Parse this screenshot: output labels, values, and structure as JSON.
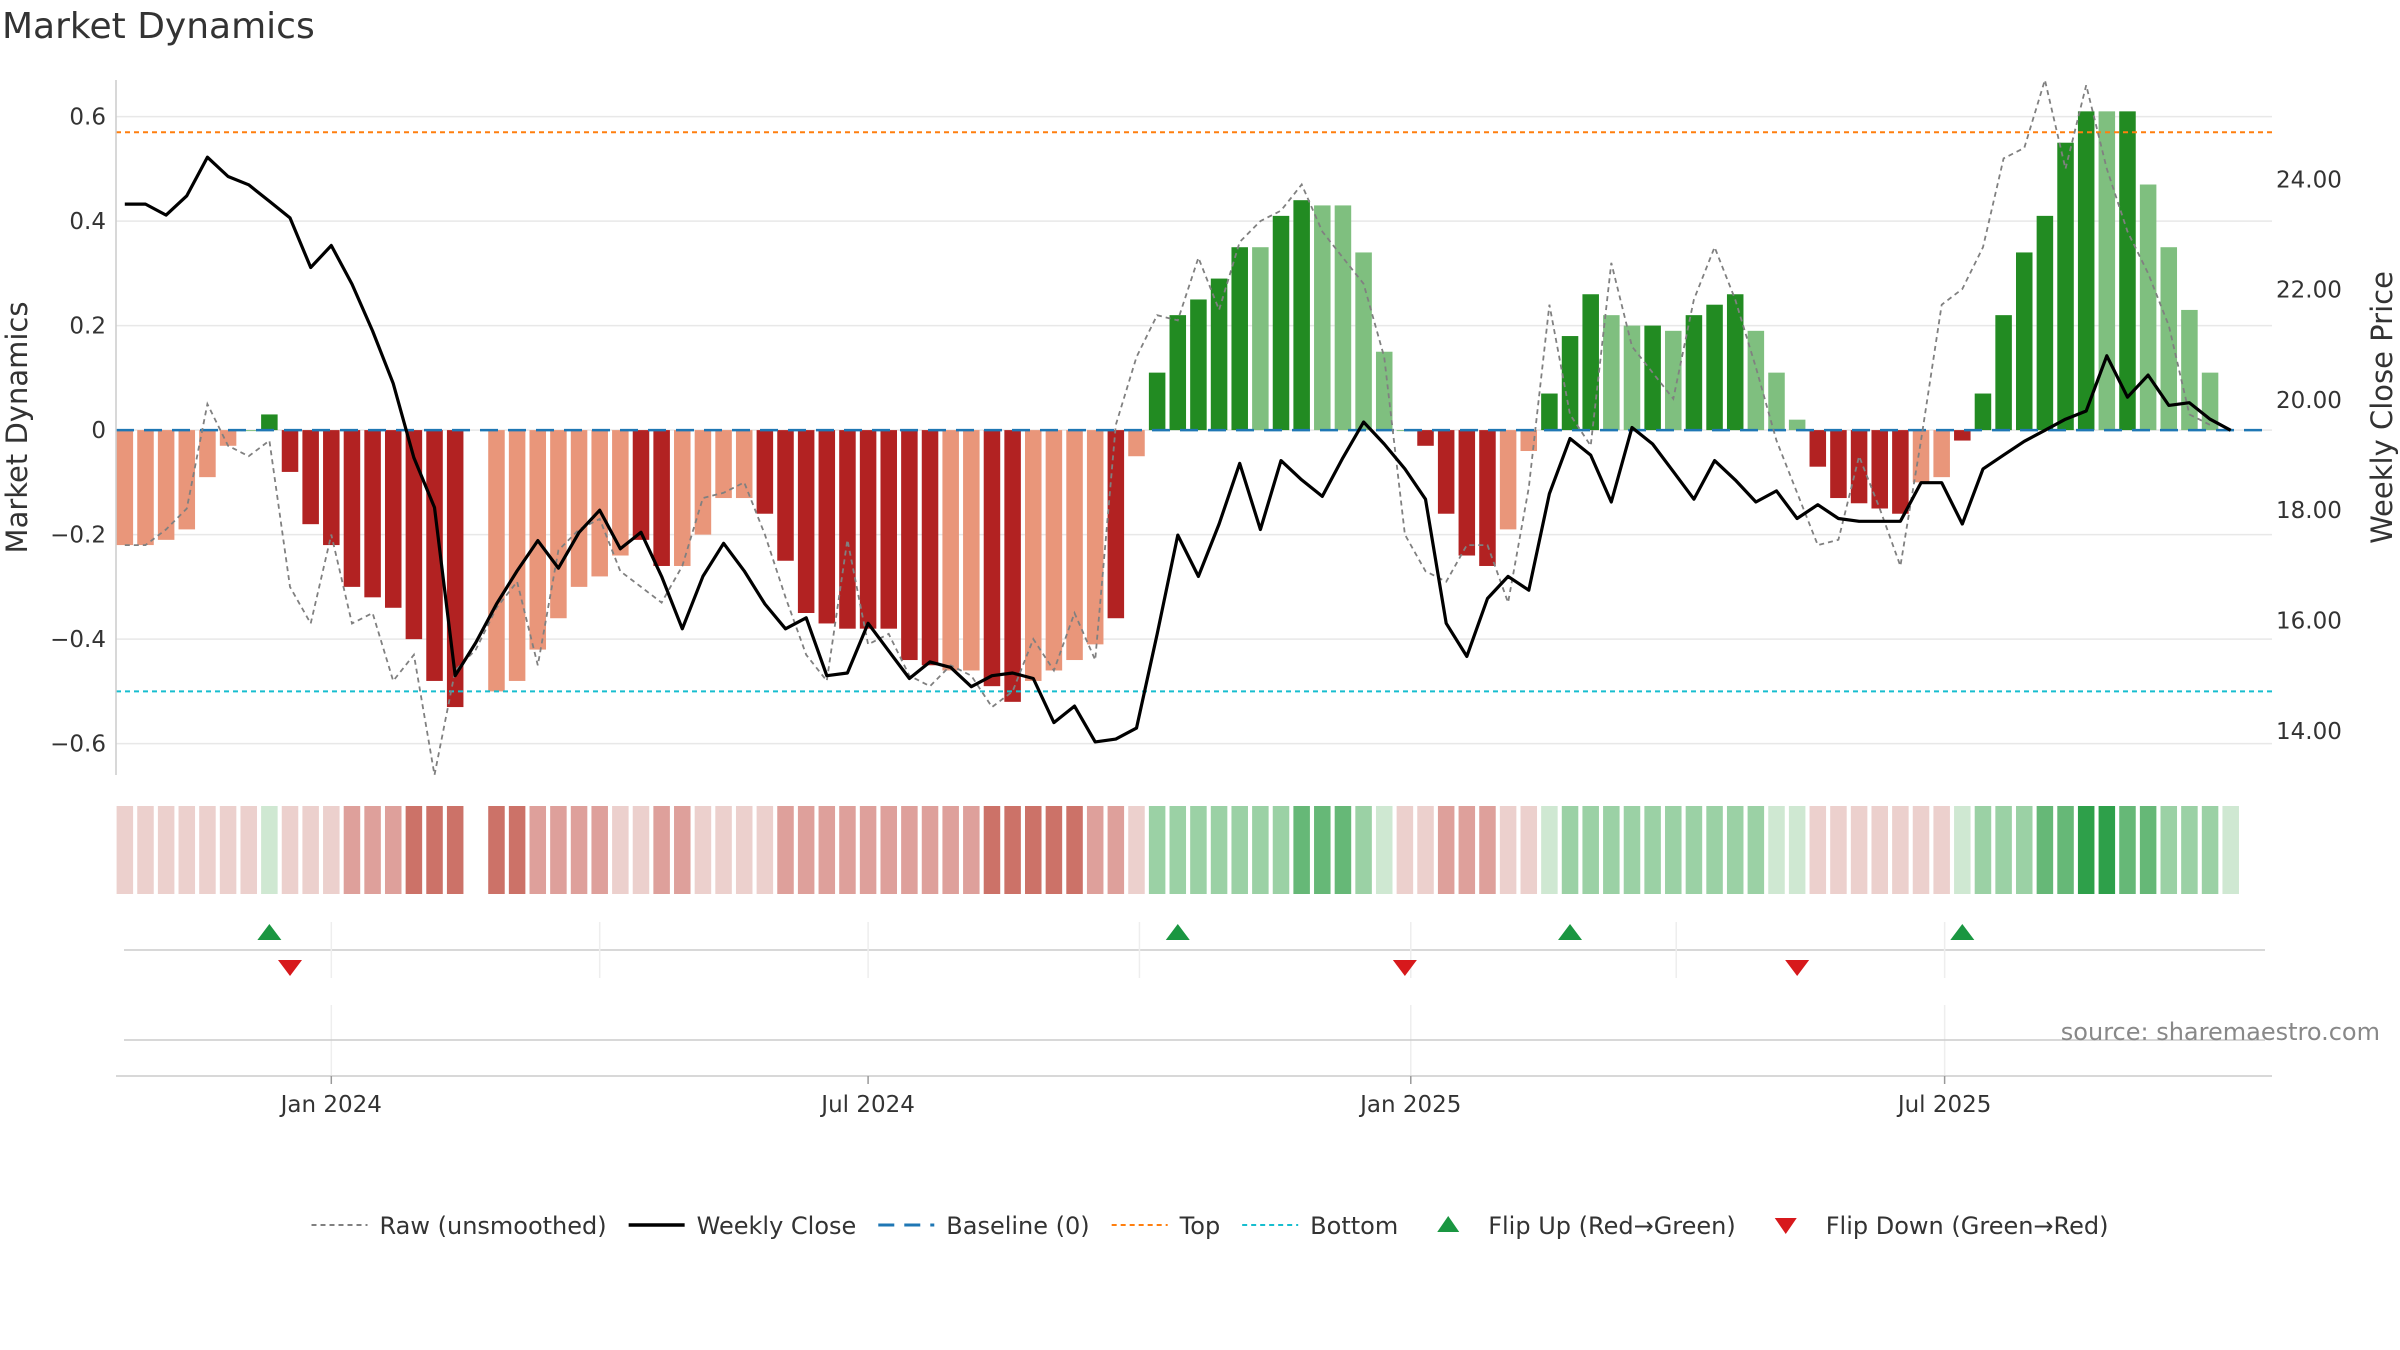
{
  "title": "Market Dynamics",
  "source": "source: sharemaestro.com",
  "colors": {
    "strong_red": "#b22222",
    "weak_red": "#e9967a",
    "strong_green": "#228b22",
    "weak_green": "#7fbf7f",
    "raw_line": "#808080",
    "close_line": "#000000",
    "baseline": "#1f77b4",
    "top": "#ff7f0e",
    "bottom": "#17becf",
    "flip_up": "#1a9641",
    "flip_down": "#d7191c"
  },
  "chart_data": {
    "type": "bar",
    "title": "Market Dynamics",
    "ylabel": "Market Dynamics",
    "y2label": "Weekly Close Price",
    "ylim": [
      -0.66,
      0.67
    ],
    "y2lim": [
      13.2,
      25.8
    ],
    "y_ticks": [
      {
        "value": 0.6,
        "label": "0.6"
      },
      {
        "value": 0.4,
        "label": "0.4"
      },
      {
        "value": 0.2,
        "label": "0.2"
      },
      {
        "value": 0,
        "label": "0"
      },
      {
        "value": -0.2,
        "label": "−0.2"
      },
      {
        "value": -0.4,
        "label": "−0.4"
      },
      {
        "value": -0.6,
        "label": "−0.6"
      }
    ],
    "y2_ticks": [
      {
        "value": 24,
        "label": "24.00"
      },
      {
        "value": 22,
        "label": "22.00"
      },
      {
        "value": 20,
        "label": "20.00"
      },
      {
        "value": 18,
        "label": "18.00"
      },
      {
        "value": 16,
        "label": "16.00"
      },
      {
        "value": 14,
        "label": "14.00"
      }
    ],
    "x_ticks": [
      {
        "date": "2024-01-01",
        "label": "Jan 2024"
      },
      {
        "date": "2024-07-01",
        "label": "Jul 2024"
      },
      {
        "date": "2025-01-01",
        "label": "Jan 2025"
      },
      {
        "date": "2025-07-01",
        "label": "Jul 2025"
      }
    ],
    "x_grid_dates": [
      "2024-01-01",
      "2024-04-01",
      "2024-07-01",
      "2024-10-01",
      "2025-01-01",
      "2025-04-01",
      "2025-07-01"
    ],
    "xlim": [
      "2023-10-20",
      "2025-10-20"
    ],
    "top_level": 0.57,
    "bottom_level": -0.5,
    "baseline": 0,
    "weeks": [
      "2023-10-23",
      "2023-10-30",
      "2023-11-06",
      "2023-11-13",
      "2023-11-20",
      "2023-11-27",
      "2023-12-04",
      "2023-12-11",
      "2023-12-18",
      "2023-12-25",
      "2024-01-01",
      "2024-01-08",
      "2024-01-15",
      "2024-01-22",
      "2024-01-29",
      "2024-02-05",
      "2024-02-12",
      "2024-02-19",
      "2024-02-26",
      "2024-03-04",
      "2024-03-11",
      "2024-03-18",
      "2024-03-25",
      "2024-04-01",
      "2024-04-08",
      "2024-04-15",
      "2024-04-22",
      "2024-04-29",
      "2024-05-06",
      "2024-05-13",
      "2024-05-20",
      "2024-05-27",
      "2024-06-03",
      "2024-06-10",
      "2024-06-17",
      "2024-06-24",
      "2024-07-01",
      "2024-07-08",
      "2024-07-15",
      "2024-07-22",
      "2024-07-29",
      "2024-08-05",
      "2024-08-12",
      "2024-08-19",
      "2024-08-26",
      "2024-09-02",
      "2024-09-09",
      "2024-09-16",
      "2024-09-23",
      "2024-09-30",
      "2024-10-07",
      "2024-10-14",
      "2024-10-21",
      "2024-10-28",
      "2024-11-04",
      "2024-11-11",
      "2024-11-18",
      "2024-11-25",
      "2024-12-02",
      "2024-12-09",
      "2024-12-16",
      "2024-12-23",
      "2024-12-30",
      "2025-01-06",
      "2025-01-13",
      "2025-01-20",
      "2025-01-27",
      "2025-02-03",
      "2025-02-10",
      "2025-02-17",
      "2025-02-24",
      "2025-03-03",
      "2025-03-10",
      "2025-03-17",
      "2025-03-24",
      "2025-03-31",
      "2025-04-07",
      "2025-04-14",
      "2025-04-21",
      "2025-04-28",
      "2025-05-05",
      "2025-05-12",
      "2025-05-19",
      "2025-05-26",
      "2025-06-02",
      "2025-06-09",
      "2025-06-16",
      "2025-06-23",
      "2025-06-30",
      "2025-07-07",
      "2025-07-14",
      "2025-07-21",
      "2025-07-28",
      "2025-08-04",
      "2025-08-11",
      "2025-08-18",
      "2025-08-25",
      "2025-09-01",
      "2025-09-08",
      "2025-09-15",
      "2025-09-22",
      "2025-09-29",
      "2025-10-06"
    ],
    "dynamics": [
      -0.22,
      -0.22,
      -0.21,
      -0.19,
      -0.09,
      -0.03,
      0,
      0.03,
      -0.08,
      -0.18,
      -0.22,
      -0.3,
      -0.32,
      -0.34,
      -0.4,
      -0.48,
      -0.53,
      null,
      -0.5,
      -0.48,
      -0.42,
      -0.36,
      -0.3,
      -0.28,
      -0.24,
      -0.21,
      -0.26,
      -0.26,
      -0.2,
      -0.13,
      -0.13,
      -0.16,
      -0.25,
      -0.35,
      -0.37,
      -0.38,
      -0.38,
      -0.38,
      -0.44,
      -0.45,
      -0.46,
      -0.46,
      -0.49,
      -0.52,
      -0.48,
      -0.46,
      -0.44,
      -0.41,
      -0.36,
      -0.05,
      0.11,
      0.22,
      0.25,
      0.29,
      0.35,
      0.35,
      0.41,
      0.44,
      0.43,
      0.43,
      0.34,
      0.15,
      0,
      -0.03,
      -0.16,
      -0.24,
      -0.26,
      -0.19,
      -0.04,
      0.07,
      0.18,
      0.26,
      0.22,
      0.2,
      0.2,
      0.19,
      0.22,
      0.24,
      0.26,
      0.19,
      0.11,
      0.02,
      -0.07,
      -0.13,
      -0.14,
      -0.15,
      -0.16,
      -0.1,
      -0.09,
      -0.02,
      0.07,
      0.22,
      0.34,
      0.41,
      0.55,
      0.61,
      0.61,
      0.61,
      0.47,
      0.35,
      0.23,
      0.11
    ],
    "strength": [
      "weak",
      "weak",
      "weak",
      "weak",
      "weak",
      "weak",
      "weak",
      "strong",
      "strong",
      "strong",
      "strong",
      "strong",
      "strong",
      "strong",
      "strong",
      "strong",
      "strong",
      "none",
      "weak",
      "weak",
      "weak",
      "weak",
      "weak",
      "weak",
      "weak",
      "strong",
      "strong",
      "weak",
      "weak",
      "weak",
      "weak",
      "strong",
      "strong",
      "strong",
      "strong",
      "strong",
      "strong",
      "strong",
      "strong",
      "strong",
      "weak",
      "weak",
      "strong",
      "strong",
      "weak",
      "weak",
      "weak",
      "weak",
      "strong",
      "weak",
      "strong",
      "strong",
      "strong",
      "strong",
      "strong",
      "weak",
      "strong",
      "strong",
      "weak",
      "weak",
      "weak",
      "weak",
      "weak",
      "strong",
      "strong",
      "strong",
      "strong",
      "weak",
      "weak",
      "strong",
      "strong",
      "strong",
      "weak",
      "weak",
      "strong",
      "weak",
      "strong",
      "strong",
      "strong",
      "weak",
      "weak",
      "weak",
      "strong",
      "strong",
      "strong",
      "strong",
      "strong",
      "weak",
      "weak",
      "strong",
      "strong",
      "strong",
      "strong",
      "strong",
      "strong",
      "strong",
      "weak",
      "strong",
      "weak",
      "weak",
      "weak",
      "weak",
      "weak"
    ],
    "raw": [
      -0.22,
      -0.22,
      -0.19,
      -0.15,
      0.05,
      -0.03,
      -0.05,
      -0.02,
      -0.3,
      -0.37,
      -0.2,
      -0.37,
      -0.35,
      -0.48,
      -0.43,
      -0.66,
      -0.46,
      -0.42,
      -0.34,
      -0.29,
      -0.45,
      -0.23,
      -0.19,
      -0.17,
      -0.27,
      -0.3,
      -0.33,
      -0.26,
      -0.13,
      -0.12,
      -0.1,
      -0.2,
      -0.32,
      -0.43,
      -0.48,
      -0.21,
      -0.41,
      -0.39,
      -0.47,
      -0.49,
      -0.45,
      -0.47,
      -0.53,
      -0.5,
      -0.4,
      -0.46,
      -0.35,
      -0.44,
      0.01,
      0.14,
      0.22,
      0.21,
      0.33,
      0.23,
      0.36,
      0.4,
      0.42,
      0.47,
      0.38,
      0.33,
      0.28,
      0.14,
      -0.2,
      -0.27,
      -0.29,
      -0.22,
      -0.22,
      -0.33,
      -0.11,
      0.24,
      0.03,
      -0.03,
      0.32,
      0.16,
      0.11,
      0.06,
      0.25,
      0.35,
      0.25,
      0.12,
      -0.02,
      -0.12,
      -0.22,
      -0.21,
      -0.05,
      -0.15,
      -0.26,
      -0.02,
      0.24,
      0.27,
      0.35,
      0.52,
      0.54,
      0.67,
      0.5,
      0.66,
      0.5,
      0.38,
      0.3,
      0.2,
      0.03,
      0.01
    ],
    "weekly_close": [
      23.55,
      23.55,
      23.35,
      23.7,
      24.4,
      24.05,
      23.9,
      23.6,
      23.3,
      22.4,
      22.8,
      22.1,
      21.25,
      20.3,
      18.95,
      18.05,
      15.0,
      15.6,
      16.3,
      16.9,
      17.45,
      16.95,
      17.6,
      18.0,
      17.3,
      17.6,
      16.8,
      15.85,
      16.8,
      17.4,
      16.9,
      16.3,
      15.85,
      16.05,
      15.0,
      15.05,
      15.95,
      15.45,
      14.95,
      15.25,
      15.15,
      14.8,
      15.0,
      15.05,
      14.95,
      14.15,
      14.45,
      13.8,
      13.85,
      14.05,
      15.75,
      17.55,
      16.8,
      17.75,
      18.85,
      17.65,
      18.9,
      18.55,
      18.25,
      18.95,
      19.6,
      19.2,
      18.75,
      18.2,
      15.95,
      15.35,
      16.4,
      16.8,
      16.55,
      18.3,
      19.3,
      19.0,
      18.15,
      19.5,
      19.2,
      18.7,
      18.2,
      18.9,
      18.55,
      18.15,
      18.35,
      17.85,
      18.1,
      17.85,
      17.8,
      17.8,
      17.8,
      18.5,
      18.5,
      17.75,
      18.75,
      19.0,
      19.25,
      19.45,
      19.65,
      19.8,
      20.8,
      20.05,
      20.45,
      19.9,
      19.95,
      19.65,
      19.45,
      19.05
    ],
    "regime": [
      "r1",
      "r1",
      "r1",
      "r1",
      "r1",
      "r1",
      "r1",
      "g1",
      "r1",
      "r1",
      "r1",
      "r2",
      "r2",
      "r2",
      "r3",
      "r3",
      "r3",
      "none",
      "r3",
      "r3",
      "r2",
      "r2",
      "r2",
      "r2",
      "r1",
      "r1",
      "r2",
      "r2",
      "r1",
      "r1",
      "r1",
      "r1",
      "r2",
      "r2",
      "r2",
      "r2",
      "r2",
      "r2",
      "r2",
      "r2",
      "r2",
      "r2",
      "r3",
      "r3",
      "r3",
      "r3",
      "r3",
      "r2",
      "r2",
      "r1",
      "g2",
      "g2",
      "g2",
      "g2",
      "g2",
      "g2",
      "g2",
      "g3",
      "g3",
      "g3",
      "g2",
      "g1",
      "r1",
      "r1",
      "r2",
      "r2",
      "r2",
      "r1",
      "r1",
      "g1",
      "g2",
      "g2",
      "g2",
      "g2",
      "g2",
      "g2",
      "g2",
      "g2",
      "g2",
      "g2",
      "g1",
      "g1",
      "r1",
      "r1",
      "r1",
      "r1",
      "r1",
      "r1",
      "r1",
      "g1",
      "g2",
      "g2",
      "g2",
      "g3",
      "g3",
      "g4",
      "g4",
      "g3",
      "g3",
      "g2",
      "g2",
      "g2",
      "g1"
    ],
    "flips_up": [
      "2023-12-11",
      "2024-10-14",
      "2025-02-24",
      "2025-07-07"
    ],
    "flips_down": [
      "2023-12-18",
      "2024-12-30",
      "2025-05-12"
    ],
    "legend": [
      {
        "key": "raw",
        "label": "Raw (unsmoothed)"
      },
      {
        "key": "close",
        "label": "Weekly Close"
      },
      {
        "key": "baseline",
        "label": "Baseline (0)"
      },
      {
        "key": "top",
        "label": "Top"
      },
      {
        "key": "bottom",
        "label": "Bottom"
      },
      {
        "key": "flip_up",
        "label": "Flip Up (Red→Green)"
      },
      {
        "key": "flip_down",
        "label": "Flip Down (Green→Red)"
      }
    ]
  }
}
